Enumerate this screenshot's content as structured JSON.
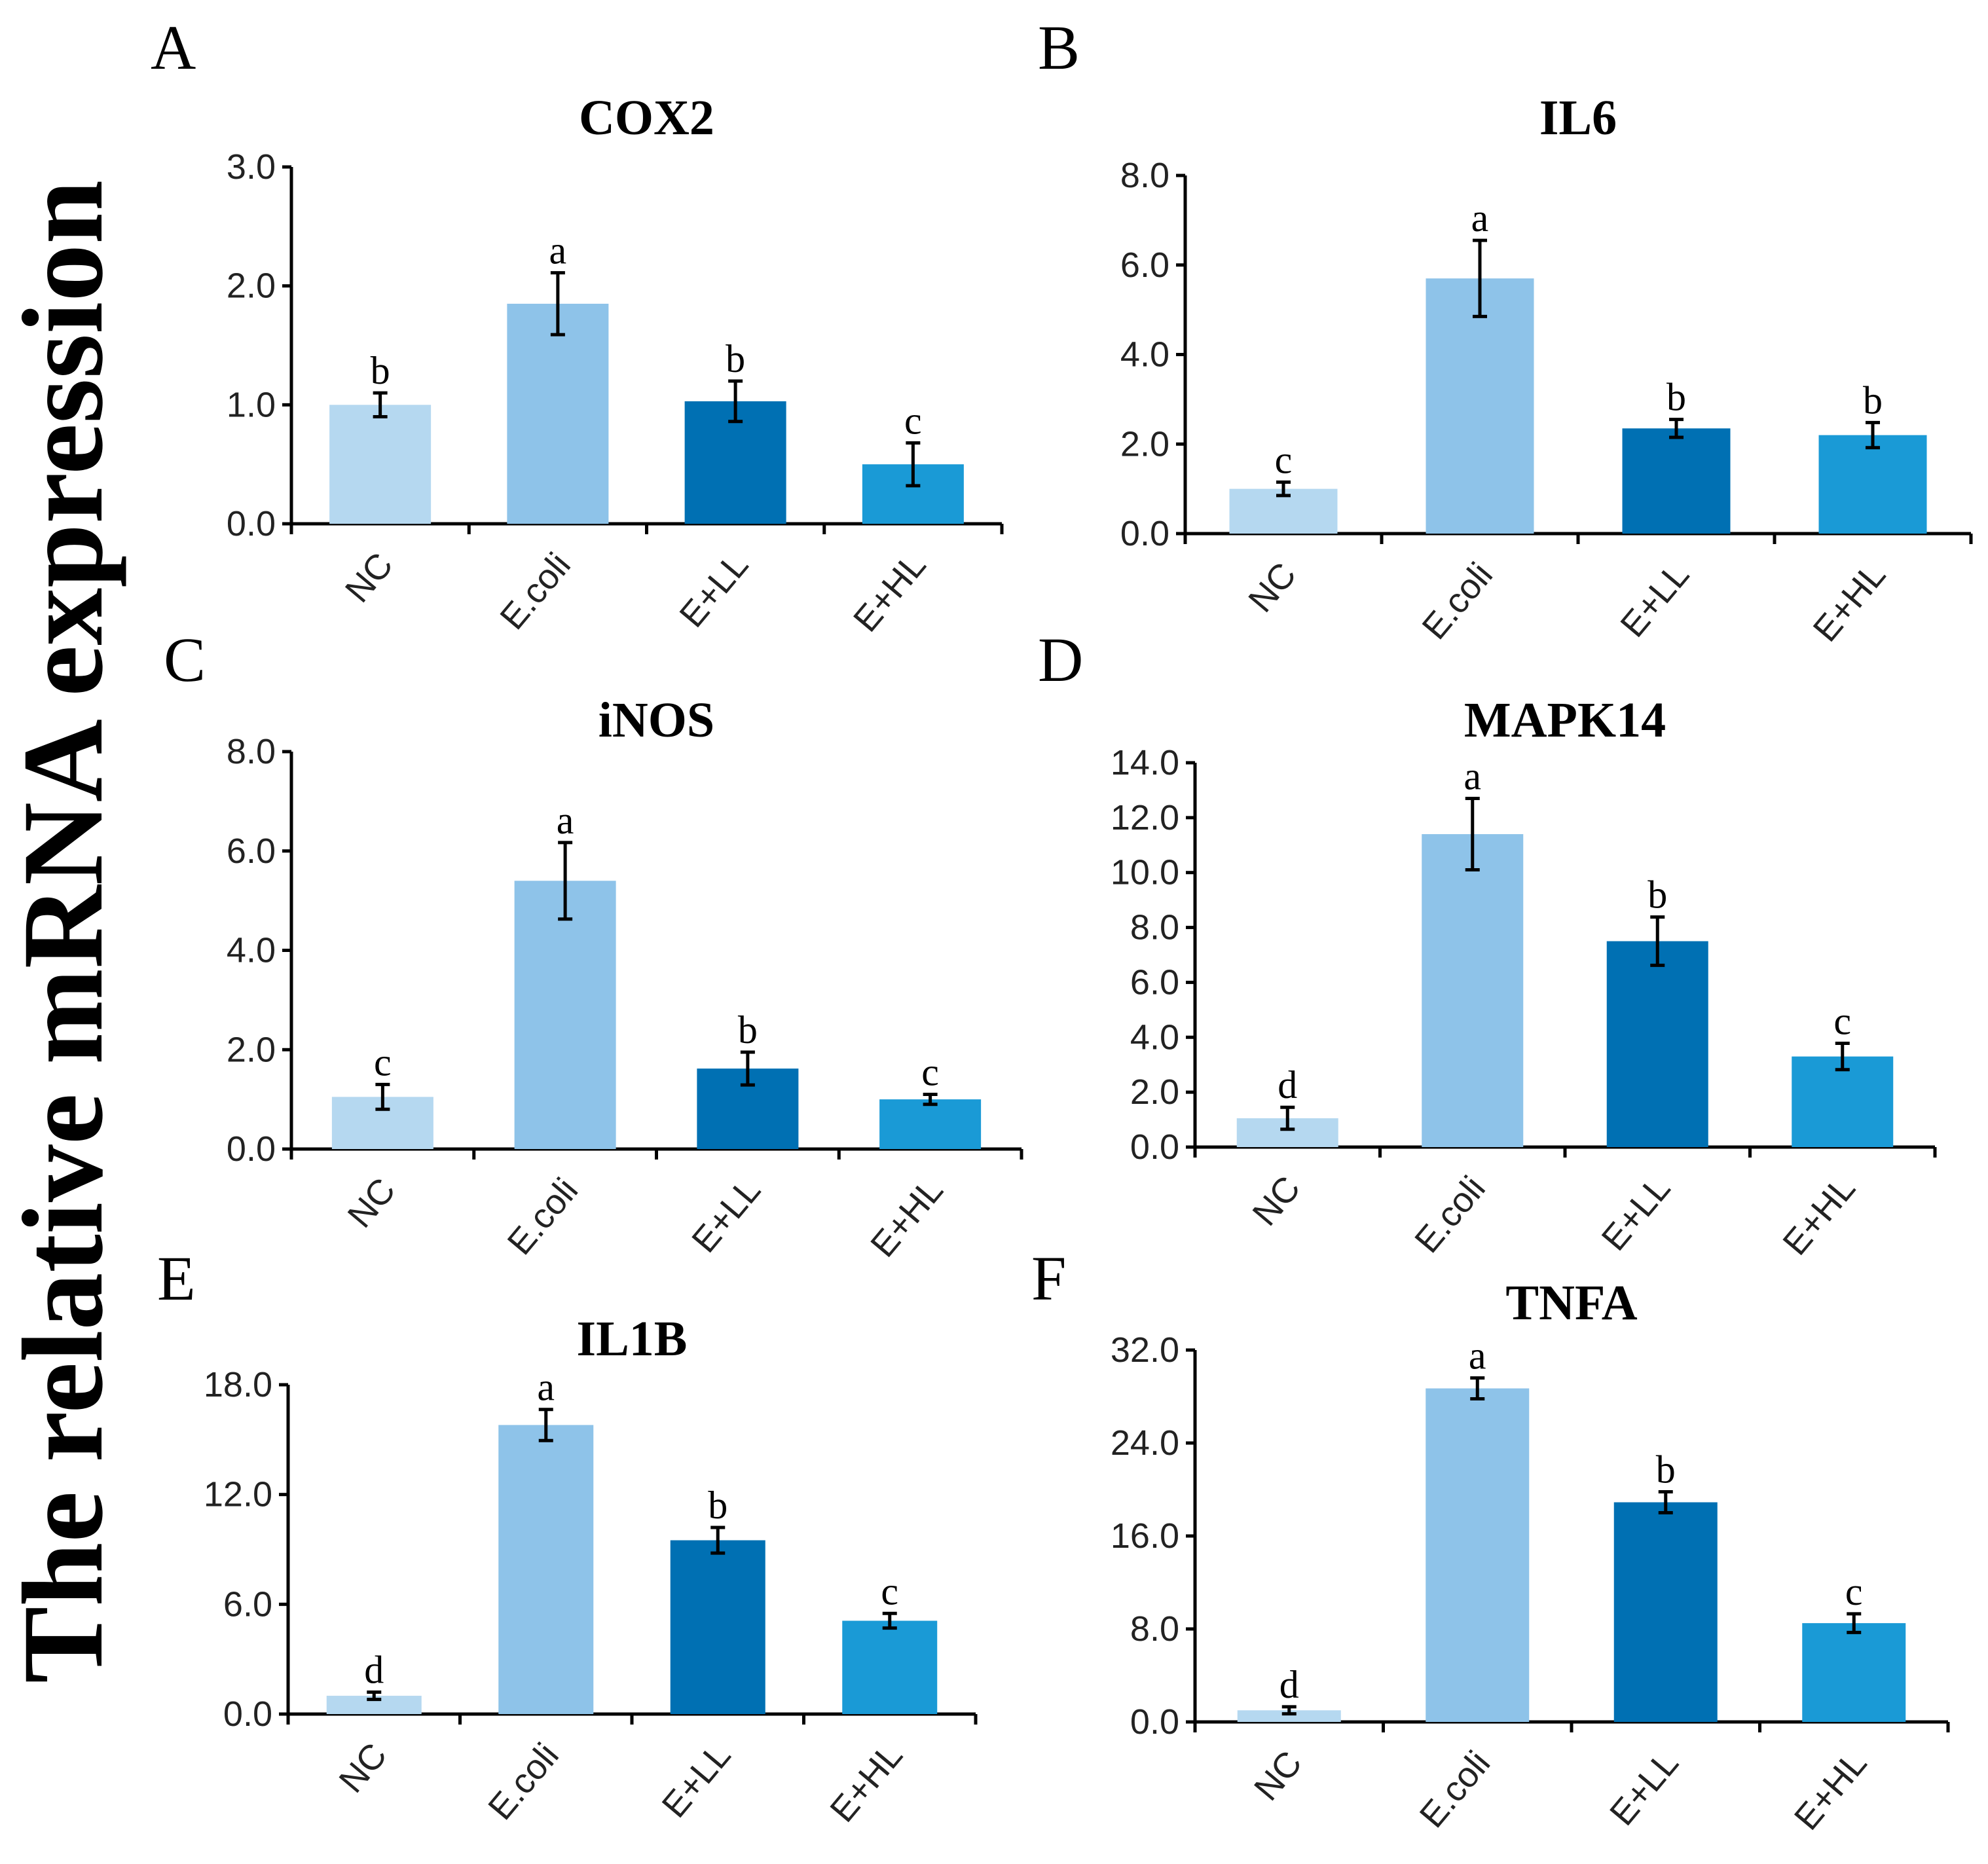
{
  "y_axis_label": "The relative mRNA expression",
  "colors": [
    "#b5d8f0",
    "#8ec3e9",
    "#0070b3",
    "#1a9ad6"
  ],
  "chart_data": [
    {
      "type": "bar",
      "panel": "A",
      "title": "COX2",
      "categories": [
        "NC",
        "E.coli",
        "E+LL",
        "E+HL"
      ],
      "values": [
        1.0,
        1.85,
        1.03,
        0.5
      ],
      "errors": [
        0.1,
        0.26,
        0.17,
        0.18
      ],
      "significance": [
        "b",
        "a",
        "b",
        "c"
      ],
      "ylim": [
        0,
        3.0
      ],
      "yticks": [
        "0.0",
        "1.0",
        "2.0",
        "3.0"
      ],
      "xlabel": "",
      "ylabel": "The relative mRNA expression"
    },
    {
      "type": "bar",
      "panel": "B",
      "title": "IL6",
      "categories": [
        "NC",
        "E.coli",
        "E+LL",
        "E+HL"
      ],
      "values": [
        1.0,
        5.7,
        2.35,
        2.2
      ],
      "errors": [
        0.15,
        0.85,
        0.2,
        0.28
      ],
      "significance": [
        "c",
        "a",
        "b",
        "b"
      ],
      "ylim": [
        0,
        8.0
      ],
      "yticks": [
        "0.0",
        "2.0",
        "4.0",
        "6.0",
        "8.0"
      ],
      "xlabel": "",
      "ylabel": "The relative mRNA expression"
    },
    {
      "type": "bar",
      "panel": "C",
      "title": "iNOS",
      "categories": [
        "NC",
        "E.coli",
        "E+LL",
        "E+HL"
      ],
      "values": [
        1.05,
        5.4,
        1.62,
        1.0
      ],
      "errors": [
        0.25,
        0.77,
        0.33,
        0.1
      ],
      "significance": [
        "c",
        "a",
        "b",
        "c"
      ],
      "ylim": [
        0,
        8.0
      ],
      "yticks": [
        "0.0",
        "2.0",
        "4.0",
        "6.0",
        "8.0"
      ],
      "xlabel": "",
      "ylabel": "The relative mRNA expression"
    },
    {
      "type": "bar",
      "panel": "D",
      "title": "MAPK14",
      "categories": [
        "NC",
        "E.coli",
        "E+LL",
        "E+HL"
      ],
      "values": [
        1.05,
        11.4,
        7.5,
        3.3
      ],
      "errors": [
        0.4,
        1.3,
        0.88,
        0.48
      ],
      "significance": [
        "d",
        "a",
        "b",
        "c"
      ],
      "ylim": [
        0,
        14.0
      ],
      "yticks": [
        "0.0",
        "2.0",
        "4.0",
        "6.0",
        "8.0",
        "10.0",
        "12.0",
        "14.0"
      ],
      "xlabel": "",
      "ylabel": "The relative mRNA expression"
    },
    {
      "type": "bar",
      "panel": "E",
      "title": "IL1B",
      "categories": [
        "NC",
        "E.coli",
        "E+LL",
        "E+HL"
      ],
      "values": [
        1.0,
        15.8,
        9.5,
        5.1
      ],
      "errors": [
        0.2,
        0.85,
        0.7,
        0.4
      ],
      "significance": [
        "d",
        "a",
        "b",
        "c"
      ],
      "ylim": [
        0,
        18.0
      ],
      "yticks": [
        "0.0",
        "6.0",
        "12.0",
        "18.0"
      ],
      "xlabel": "",
      "ylabel": "The relative mRNA expression"
    },
    {
      "type": "bar",
      "panel": "F",
      "title": "TNFA",
      "categories": [
        "NC",
        "E.coli",
        "E+LL",
        "E+HL"
      ],
      "values": [
        1.0,
        28.7,
        18.9,
        8.5
      ],
      "errors": [
        0.3,
        0.9,
        0.9,
        0.8
      ],
      "significance": [
        "d",
        "a",
        "b",
        "c"
      ],
      "ylim": [
        0,
        32.0
      ],
      "yticks": [
        "0.0",
        "8.0",
        "16.0",
        "24.0",
        "32.0"
      ],
      "xlabel": "",
      "ylabel": "The relative mRNA expression"
    }
  ]
}
